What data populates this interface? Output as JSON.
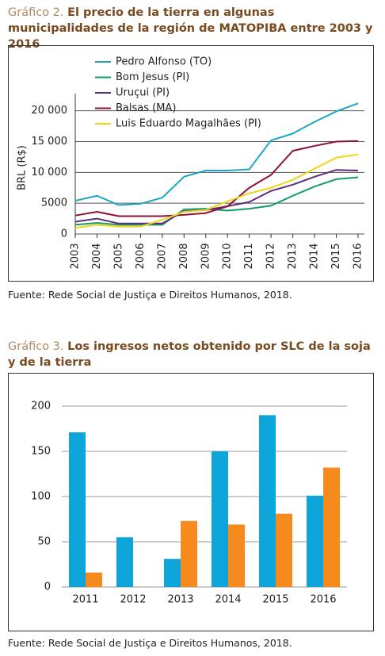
{
  "chart_data": [
    {
      "type": "line",
      "title_number": "Gráfico 2.",
      "title": "El precio de la tierra en algunas municipalidades de la región de MATOPIBA entre 2003 y 2016",
      "ylabel": "BRL (R$)",
      "source": "Fuente: Rede Social de Justiça e Direitos Humanos, 2018.",
      "categories": [
        "2003",
        "2004",
        "2005",
        "2006",
        "2007",
        "2008",
        "2009",
        "2010",
        "2011",
        "2012",
        "2013",
        "2014",
        "2015",
        "2016"
      ],
      "ylim": [
        0,
        21500
      ],
      "yticks": [
        0,
        5000,
        {
          "value": 10000,
          "label": "10 000"
        },
        {
          "value": 15000,
          "label": "15 000"
        },
        {
          "value": 20000,
          "label": "20 000"
        }
      ],
      "grid": true,
      "legend": "upper left",
      "series": [
        {
          "name": "Pedro Alfonso (TO)",
          "color": "#1aa6c4",
          "values": [
            5400,
            6200,
            4700,
            4900,
            5900,
            9300,
            10300,
            10300,
            10500,
            15200,
            16300,
            18200,
            19900,
            21200
          ]
        },
        {
          "name": "Bom Jesus (PI)",
          "color": "#169c6b",
          "values": [
            1500,
            1800,
            1500,
            1500,
            1500,
            4000,
            4100,
            3800,
            4100,
            4600,
            6200,
            7700,
            8900,
            9200
          ]
        },
        {
          "name": "Uruçui (PI)",
          "color": "#5a2d78",
          "values": [
            2000,
            2500,
            1700,
            1700,
            1700,
            3700,
            3900,
            4500,
            5200,
            7000,
            8000,
            9300,
            10400,
            10300
          ]
        },
        {
          "name": "Balsas (MA)",
          "color": "#8b1238",
          "values": [
            3000,
            3600,
            2900,
            2900,
            2900,
            3100,
            3400,
            4500,
            7500,
            9600,
            13500,
            14300,
            15000,
            15100
          ]
        },
        {
          "name": "Luis Eduardo Magalhães (PI)",
          "color": "#f0d41a",
          "values": [
            1000,
            1500,
            1200,
            1200,
            2300,
            3600,
            3900,
            5300,
            6600,
            7500,
            8800,
            10600,
            12400,
            12900
          ]
        }
      ]
    },
    {
      "type": "bar",
      "title_number": "Gráfico 3.",
      "title": "Los ingresos netos obtenido por SLC de la soja y de la tierra",
      "source": "Fuente: Rede Social de Justiça e Direitos Humanos, 2018.",
      "categories": [
        "2011",
        "2012",
        "2013",
        "2014",
        "2015",
        "2016"
      ],
      "ylim": [
        0,
        200
      ],
      "yticks": [
        0,
        50,
        100,
        150,
        200
      ],
      "grid": true,
      "series": [
        {
          "color": "#0ca4d9",
          "values": [
            171,
            55,
            31,
            150,
            190,
            101
          ]
        },
        {
          "color": "#f78a1d",
          "values": [
            16,
            null,
            73,
            69,
            81,
            132
          ]
        }
      ]
    }
  ]
}
